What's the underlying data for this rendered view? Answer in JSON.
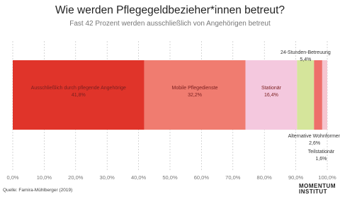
{
  "chart_data": {
    "type": "bar",
    "orientation": "horizontal",
    "stacked": true,
    "title": "Wie werden Pflegegeldbezieher*innen betreut?",
    "subtitle": "Fast 42 Prozent werden ausschließlich von Angehörigen betreut",
    "series": [
      {
        "name": "Ausschließlich durch pflegende Angehörige",
        "color": "#e0342a",
        "values": [
          41.8
        ],
        "value_labels": [
          "41,8%"
        ]
      },
      {
        "name": "Mobile Pflegedienste",
        "color": "#f07c70",
        "values": [
          32.2
        ],
        "value_labels": [
          "32,2%"
        ]
      },
      {
        "name": "Stationär",
        "color": "#f4c8de",
        "values": [
          16.4
        ],
        "value_labels": [
          "16,4%"
        ]
      },
      {
        "name": "24-Stunden-Betreuung",
        "color": "#d5e59b",
        "values": [
          5.4
        ],
        "value_labels": [
          "5,4%"
        ]
      },
      {
        "name": "Alternative Wohnformen",
        "color": "#ee6f6a",
        "values": [
          2.6
        ],
        "value_labels": [
          "2,6%"
        ]
      },
      {
        "name": "Teilstationär",
        "color": "#f6c5cf",
        "values": [
          1.6
        ],
        "value_labels": [
          "1,6%"
        ]
      }
    ],
    "xlim": [
      0,
      100
    ],
    "xticks": [
      {
        "value": 0,
        "label": "0,0%"
      },
      {
        "value": 10,
        "label": "10,0%"
      },
      {
        "value": 20,
        "label": "20,0%"
      },
      {
        "value": 30,
        "label": "30,0%"
      },
      {
        "value": 40,
        "label": "40,0%"
      },
      {
        "value": 50,
        "label": "50,0%"
      },
      {
        "value": 60,
        "label": "60,0%"
      },
      {
        "value": 70,
        "label": "70,0%"
      },
      {
        "value": 80,
        "label": "80,0%"
      },
      {
        "value": 90,
        "label": "90,0%"
      },
      {
        "value": 100,
        "label": "100,0%"
      }
    ],
    "grid": true,
    "source": "Quelle: Famira-Mühlberger (2019)",
    "logo": [
      "MOMENTUM",
      "INSTITUT"
    ]
  }
}
